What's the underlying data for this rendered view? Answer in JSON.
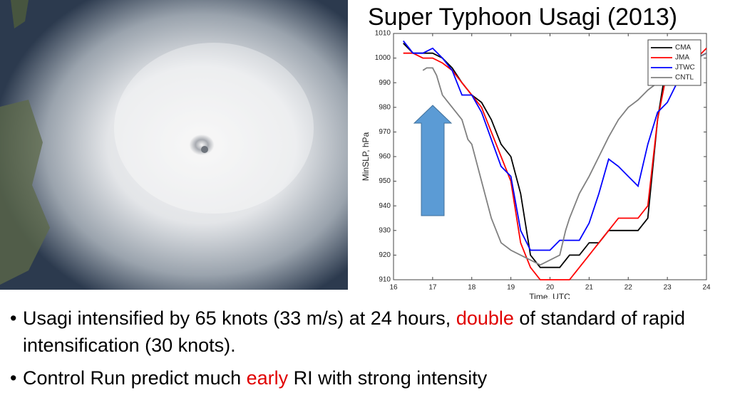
{
  "chart_data": {
    "type": "line",
    "title": "Super Typhoon Usagi (2013)",
    "x_label": "Time, UTC",
    "y_label": "MinSLP, hPa",
    "xlim": [
      16,
      24
    ],
    "xticks": [
      16,
      17,
      18,
      19,
      20,
      21,
      22,
      23,
      24
    ],
    "ylim": [
      910,
      1010
    ],
    "yticks": [
      910,
      920,
      930,
      940,
      950,
      960,
      970,
      980,
      990,
      1000,
      1010
    ],
    "legend": "upper right",
    "series": [
      {
        "name": "CMA",
        "color": "#000000",
        "x": [
          16.25,
          16.5,
          17,
          17.25,
          17.5,
          17.75,
          18,
          18.25,
          18.5,
          18.75,
          19,
          19.25,
          19.5,
          19.75,
          20,
          20.25,
          20.5,
          20.75,
          21,
          21.25,
          21.5,
          21.75,
          22,
          22.25,
          22.5,
          22.75,
          23,
          23.25,
          23.5,
          23.75,
          24
        ],
        "values": [
          1006,
          1002,
          1002,
          1000,
          996,
          990,
          985,
          982,
          975,
          965,
          960,
          945,
          920,
          915,
          915,
          915,
          920,
          920,
          925,
          925,
          930,
          930,
          930,
          930,
          935,
          975,
          1000,
          1000,
          1000,
          1000,
          1002
        ]
      },
      {
        "name": "JMA",
        "color": "#ff0000",
        "x": [
          16.25,
          16.5,
          16.75,
          17,
          17.25,
          17.5,
          17.75,
          18,
          18.25,
          18.5,
          18.75,
          19,
          19.25,
          19.5,
          19.75,
          20,
          20.25,
          20.5,
          20.75,
          21,
          21.25,
          21.5,
          21.75,
          22,
          22.25,
          22.5,
          22.75,
          23,
          23.25,
          23.5,
          23.75,
          24
        ],
        "values": [
          1002,
          1002,
          1000,
          1000,
          998,
          995,
          990,
          985,
          980,
          970,
          960,
          950,
          925,
          915,
          910,
          910,
          910,
          910,
          915,
          920,
          925,
          930,
          935,
          935,
          935,
          940,
          975,
          995,
          1000,
          1000,
          1000,
          1004
        ]
      },
      {
        "name": "JTWC",
        "color": "#0000ff",
        "x": [
          16.25,
          16.5,
          16.75,
          17,
          17.25,
          17.5,
          17.75,
          18,
          18.25,
          18.5,
          18.75,
          19,
          19.25,
          19.5,
          19.75,
          20,
          20.25,
          20.5,
          20.75,
          21,
          21.25,
          21.5,
          21.75,
          22,
          22.25,
          22.5,
          22.75,
          23,
          23.25,
          23.5,
          23.75,
          24
        ],
        "values": [
          1007,
          1002,
          1002,
          1004,
          1000,
          995,
          985,
          985,
          978,
          967,
          956,
          952,
          930,
          922,
          922,
          922,
          926,
          926,
          926,
          933,
          945,
          959,
          956,
          952,
          948,
          965,
          978,
          982,
          990,
          997,
          1000,
          1002
        ]
      },
      {
        "name": "CNTL",
        "color": "#808080",
        "x": [
          16.75,
          16.85,
          17,
          17.1,
          17.25,
          17.4,
          17.5,
          17.75,
          17.9,
          18,
          18.25,
          18.5,
          18.75,
          19,
          19.25,
          19.5,
          19.75,
          20,
          20.25,
          20.4,
          20.5,
          20.75,
          21,
          21.25,
          21.5,
          21.75,
          22,
          22.25,
          22.5,
          22.75,
          23,
          23.25,
          23.5,
          24
        ],
        "values": [
          995,
          996,
          996,
          993,
          985,
          982,
          980,
          975,
          967,
          965,
          950,
          935,
          925,
          922,
          920,
          918,
          916,
          918,
          920,
          930,
          935,
          945,
          952,
          960,
          968,
          975,
          980,
          983,
          987,
          990,
          992,
          995,
          998,
          1002
        ]
      }
    ]
  },
  "bullets": [
    {
      "parts": [
        "Usagi intensified by 65 knots (33 m/s) at 24 hours, ",
        "double",
        " of standard of rapid intensification (30 knots)."
      ]
    },
    {
      "parts": [
        "Control Run predict much ",
        "early",
        " RI with strong intensity"
      ]
    }
  ]
}
